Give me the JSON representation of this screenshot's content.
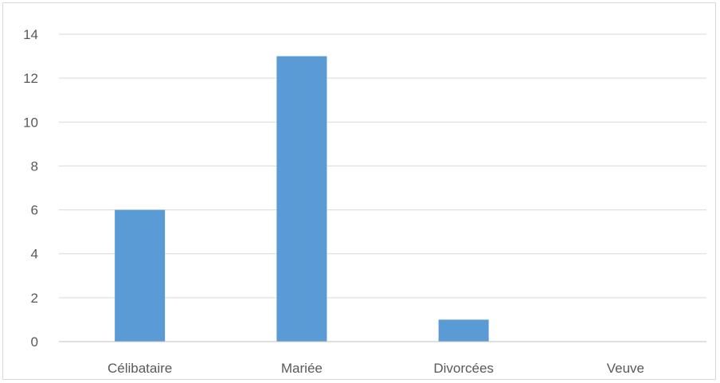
{
  "chart_data": {
    "type": "bar",
    "title": "",
    "xlabel": "",
    "ylabel": "",
    "categories": [
      "Célibataire",
      "Mariée",
      "Divorcées",
      "Veuve"
    ],
    "values": [
      6,
      13,
      1,
      0
    ],
    "ylim": [
      0,
      14
    ],
    "yticks": [
      "0",
      "2",
      "4",
      "6",
      "8",
      "10",
      "12",
      "14"
    ],
    "grid": true,
    "legend": "none",
    "colors": {
      "bar": "#5b9bd5",
      "grid": "#d9d9d9",
      "axis": "#bfbfbf",
      "label": "#595959"
    }
  }
}
